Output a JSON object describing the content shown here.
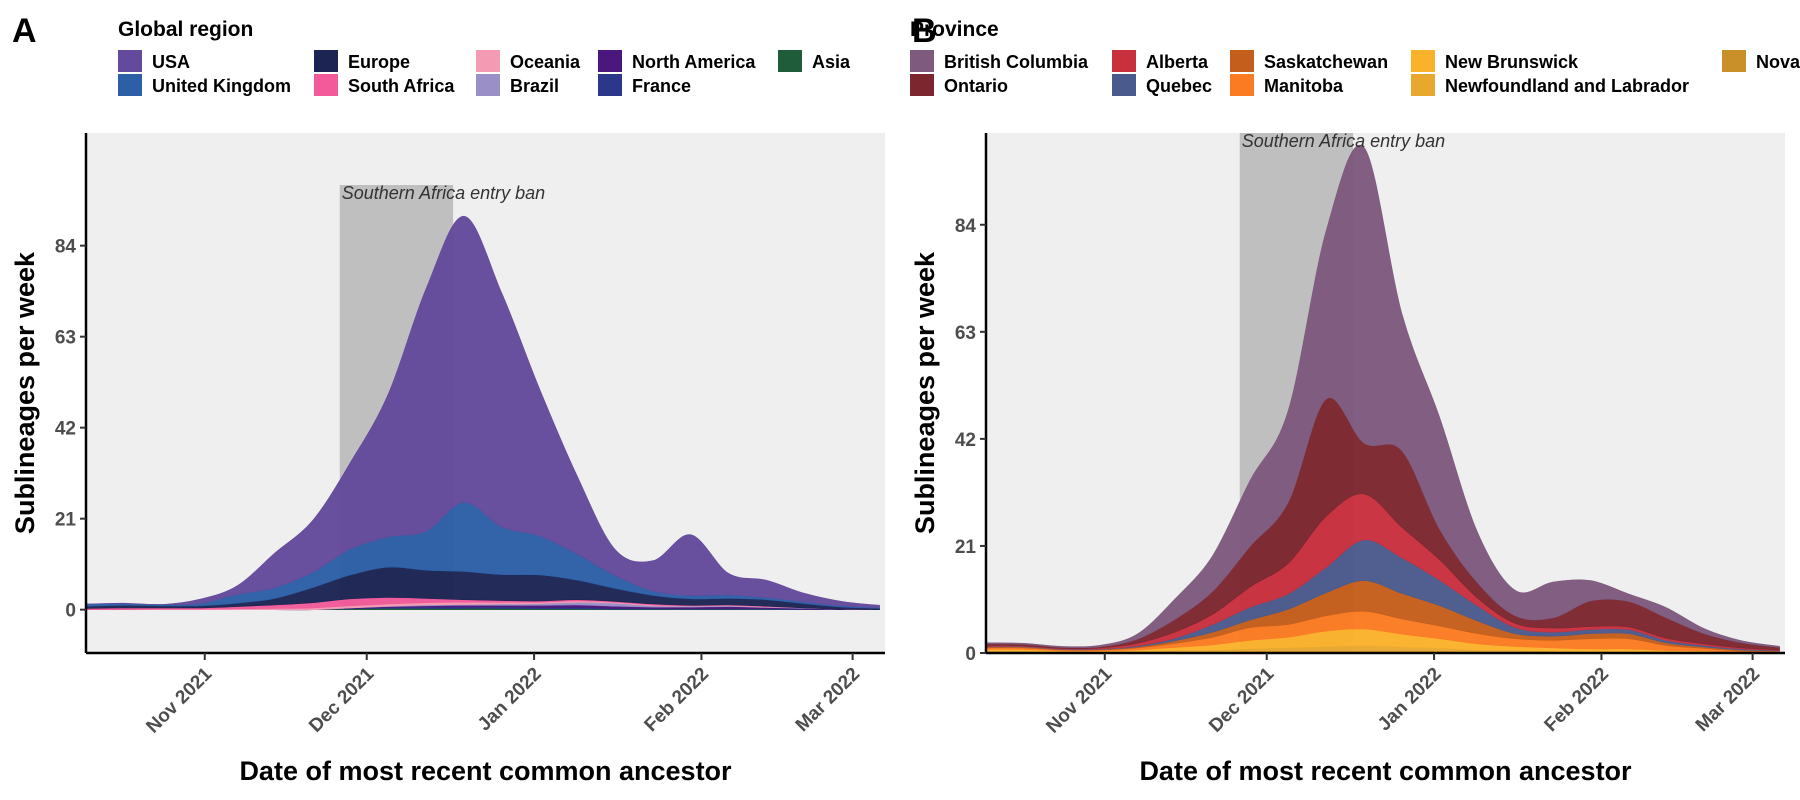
{
  "figure": {
    "panels": [
      {
        "letter": "A",
        "legend_title": "Global region",
        "xlabel": "Date of most recent common ancestor",
        "ylabel": "Sublineages per week",
        "annotation": "Southern Africa entry ban",
        "x_ticks": [
          "Nov 2021",
          "Dec 2021",
          "Jan 2022",
          "Feb 2022",
          "Mar 2022"
        ],
        "y_ticks": [
          "0",
          "21",
          "42",
          "63",
          "84"
        ]
      },
      {
        "letter": "B",
        "legend_title": "Province",
        "xlabel": "Date of most recent common ancestor",
        "ylabel": "Sublineages per week",
        "annotation": "Southern Africa entry ban",
        "x_ticks": [
          "Nov 2021",
          "Dec 2021",
          "Jan 2022",
          "Feb 2022",
          "Mar 2022"
        ],
        "y_ticks": [
          "0",
          "21",
          "42",
          "63",
          "84"
        ]
      }
    ]
  },
  "chart_data": [
    {
      "type": "area",
      "stacked": true,
      "smoothed": true,
      "title": "",
      "legend_title": "Global region",
      "legend_position": "top",
      "xlabel": "Date of most recent common ancestor",
      "ylabel": "Sublineages per week",
      "x_tick_labels": [
        "Nov 2021",
        "Dec 2021",
        "Jan 2022",
        "Feb 2022",
        "Mar 2022"
      ],
      "x_tick_dates": [
        "2021-11-01",
        "2021-12-01",
        "2022-01-01",
        "2022-02-01",
        "2022-03-01"
      ],
      "xlim": [
        "2021-10-10",
        "2022-03-07"
      ],
      "ylim": [
        -10,
        110
      ],
      "y_ticks": [
        0,
        21,
        42,
        63,
        84
      ],
      "grid": false,
      "background": "#efefef",
      "shaded_interval": {
        "from": "2021-11-26",
        "to": "2021-12-17",
        "label": "Southern Africa entry ban",
        "color": "#bfbfbf"
      },
      "x": [
        "2021-10-10",
        "2021-10-17",
        "2021-10-24",
        "2021-10-31",
        "2021-11-07",
        "2021-11-14",
        "2021-11-21",
        "2021-11-28",
        "2021-12-05",
        "2021-12-12",
        "2021-12-19",
        "2021-12-26",
        "2022-01-02",
        "2022-01-09",
        "2022-01-16",
        "2022-01-23",
        "2022-01-30",
        "2022-02-06",
        "2022-02-13",
        "2022-02-20",
        "2022-02-27",
        "2022-03-06"
      ],
      "series": [
        {
          "name": "Asia",
          "color": "#1f5c3a",
          "values": [
            0,
            0,
            0,
            0,
            0,
            0,
            0,
            0.2,
            0.3,
            0.3,
            0.3,
            0.3,
            0.2,
            0.2,
            0.1,
            0.1,
            0.1,
            0.1,
            0.1,
            0,
            0,
            0
          ]
        },
        {
          "name": "France",
          "color": "#2b3789",
          "values": [
            0,
            0,
            0,
            0,
            0,
            0,
            0,
            0.1,
            0.2,
            0.3,
            0.3,
            0.3,
            0.3,
            0.3,
            0.2,
            0.2,
            0.1,
            0.1,
            0.1,
            0.1,
            0,
            0
          ]
        },
        {
          "name": "North America",
          "color": "#4a177d",
          "values": [
            0,
            0,
            0,
            0,
            0,
            0,
            0,
            0.1,
            0.2,
            0.3,
            0.4,
            0.4,
            0.5,
            0.6,
            0.5,
            0.3,
            0.4,
            0.5,
            0.3,
            0.2,
            0.1,
            0
          ]
        },
        {
          "name": "Brazil",
          "color": "#9a8fc6",
          "values": [
            0,
            0,
            0,
            0,
            0,
            0,
            0,
            0,
            0.1,
            0.2,
            0.2,
            0.3,
            0.4,
            0.6,
            0.7,
            0.3,
            0.2,
            0.2,
            0.1,
            0.1,
            0,
            0
          ]
        },
        {
          "name": "Oceania",
          "color": "#f49ab3",
          "values": [
            0,
            0,
            0.1,
            0.1,
            0.2,
            0.3,
            0.4,
            0.5,
            0.5,
            0.5,
            0.5,
            0.4,
            0.3,
            0.3,
            0.2,
            0.2,
            0.1,
            0.1,
            0.1,
            0,
            0,
            0
          ]
        },
        {
          "name": "South Africa",
          "color": "#f25a9a",
          "values": [
            0.3,
            0.4,
            0.3,
            0.3,
            0.5,
            0.8,
            1.2,
            1.6,
            1.5,
            1.0,
            0.6,
            0.4,
            0.3,
            0.3,
            0.2,
            0.2,
            0.1,
            0.1,
            0.1,
            0,
            0,
            0
          ]
        },
        {
          "name": "Europe",
          "color": "#1c2454",
          "values": [
            0.5,
            0.6,
            0.5,
            0.5,
            0.8,
            1.5,
            3.5,
            5.5,
            7.0,
            6.5,
            6.5,
            6.0,
            6.0,
            4.5,
            3.0,
            2.0,
            1.5,
            1.5,
            1.5,
            1.0,
            0.5,
            0.3
          ]
        },
        {
          "name": "United Kingdom",
          "color": "#2c5fa6",
          "values": [
            0.5,
            0.4,
            0.3,
            0.5,
            2.0,
            2.5,
            3.5,
            6.0,
            7.0,
            9.0,
            16.0,
            11.0,
            9.0,
            6.0,
            3.0,
            1.0,
            0.8,
            0.8,
            0.5,
            0.4,
            0.3,
            0.2
          ]
        },
        {
          "name": "USA",
          "color": "#644a9c",
          "values": [
            0,
            0.1,
            0,
            1.0,
            2.0,
            8.0,
            12.0,
            20.0,
            33.0,
            56.0,
            66.0,
            54.0,
            34.0,
            18.0,
            6.0,
            7.0,
            14.0,
            5.0,
            4.0,
            2.0,
            1.0,
            0.5
          ]
        }
      ]
    },
    {
      "type": "area",
      "stacked": true,
      "smoothed": true,
      "title": "",
      "legend_title": "Province",
      "legend_position": "top",
      "xlabel": "Date of most recent common ancestor",
      "ylabel": "Sublineages per week",
      "x_tick_labels": [
        "Nov 2021",
        "Dec 2021",
        "Jan 2022",
        "Feb 2022",
        "Mar 2022"
      ],
      "x_tick_dates": [
        "2021-11-01",
        "2021-12-01",
        "2022-01-01",
        "2022-02-01",
        "2022-03-01"
      ],
      "xlim": [
        "2021-10-10",
        "2022-03-07"
      ],
      "ylim": [
        0,
        102
      ],
      "y_ticks": [
        0,
        21,
        42,
        63,
        84
      ],
      "grid": false,
      "background": "#efefef",
      "shaded_interval": {
        "from": "2021-11-26",
        "to": "2021-12-17",
        "label": "Southern Africa entry ban",
        "color": "#bfbfbf"
      },
      "x": [
        "2021-10-10",
        "2021-10-17",
        "2021-10-24",
        "2021-10-31",
        "2021-11-07",
        "2021-11-14",
        "2021-11-21",
        "2021-11-28",
        "2021-12-05",
        "2021-12-12",
        "2021-12-19",
        "2021-12-26",
        "2022-01-02",
        "2022-01-09",
        "2022-01-16",
        "2022-01-23",
        "2022-01-30",
        "2022-02-06",
        "2022-02-13",
        "2022-02-20",
        "2022-02-27",
        "2022-03-06"
      ],
      "series": [
        {
          "name": "Nova Scotia",
          "color": "#c9902a",
          "values": [
            0.2,
            0.2,
            0.1,
            0.1,
            0.1,
            0.2,
            0.2,
            0.3,
            0.3,
            0.3,
            0.3,
            0.3,
            0.3,
            0.2,
            0.2,
            0.1,
            0.1,
            0.1,
            0.1,
            0.1,
            0,
            0
          ]
        },
        {
          "name": "Newfoundland and Labrador",
          "color": "#e8a82e",
          "values": [
            0.2,
            0.2,
            0.1,
            0.1,
            0.2,
            0.3,
            0.4,
            0.6,
            0.8,
            1.0,
            1.2,
            0.9,
            0.7,
            0.4,
            0.3,
            0.3,
            0.2,
            0.2,
            0.1,
            0.1,
            0,
            0
          ]
        },
        {
          "name": "New Brunswick",
          "color": "#fbb22b",
          "values": [
            0.3,
            0.3,
            0.2,
            0.2,
            0.3,
            0.6,
            1.0,
            1.6,
            2.0,
            3.0,
            3.2,
            2.5,
            1.8,
            1.2,
            0.8,
            0.6,
            0.5,
            0.5,
            0.3,
            0.2,
            0.1,
            0.1
          ]
        },
        {
          "name": "Manitoba",
          "color": "#fb7b22",
          "values": [
            0.3,
            0.3,
            0.2,
            0.2,
            0.4,
            0.8,
            1.5,
            2.5,
            2.5,
            3.0,
            3.5,
            3.0,
            2.5,
            2.0,
            1.5,
            1.5,
            2.0,
            2.0,
            1.0,
            0.5,
            0.3,
            0.2
          ]
        },
        {
          "name": "Saskatchewan",
          "color": "#c45e1c",
          "values": [
            0.2,
            0.2,
            0.1,
            0.1,
            0.2,
            0.5,
            1.0,
            1.5,
            3.0,
            4.5,
            6.0,
            5.0,
            4.0,
            2.5,
            1.0,
            0.8,
            1.0,
            1.0,
            0.5,
            0.3,
            0.2,
            0.1
          ]
        },
        {
          "name": "Quebec",
          "color": "#4a5a8c",
          "values": [
            0.1,
            0.1,
            0.1,
            0.1,
            0.2,
            0.5,
            1.5,
            2.5,
            3.0,
            5.0,
            8.0,
            7.0,
            5.0,
            3.0,
            1.2,
            0.8,
            0.8,
            0.8,
            0.5,
            0.3,
            0.2,
            0.1
          ]
        },
        {
          "name": "Alberta",
          "color": "#c8303e",
          "values": [
            0.2,
            0.1,
            0.1,
            0.2,
            0.5,
            1.2,
            2.0,
            4.0,
            6.0,
            10.0,
            9.0,
            6.0,
            4.0,
            1.5,
            0.8,
            0.8,
            0.6,
            0.5,
            0.4,
            0.3,
            0.2,
            0.1
          ]
        },
        {
          "name": "Ontario",
          "color": "#7c262f",
          "values": [
            0.3,
            0.3,
            0.2,
            0.2,
            0.8,
            2.5,
            4.5,
            8.0,
            12.0,
            23.0,
            10.0,
            15.0,
            6.0,
            3.0,
            1.5,
            2.0,
            5.0,
            5.0,
            4.0,
            2.0,
            1.0,
            0.5
          ]
        },
        {
          "name": "British Columbia",
          "color": "#7e5a7e",
          "values": [
            0.2,
            0.2,
            0.2,
            0.3,
            1.0,
            4.0,
            7.0,
            13.0,
            18.0,
            33.0,
            58.0,
            27.0,
            22.0,
            10.0,
            5.0,
            7.0,
            4.0,
            1.5,
            2.0,
            1.0,
            0.4,
            0.2
          ]
        }
      ]
    }
  ]
}
